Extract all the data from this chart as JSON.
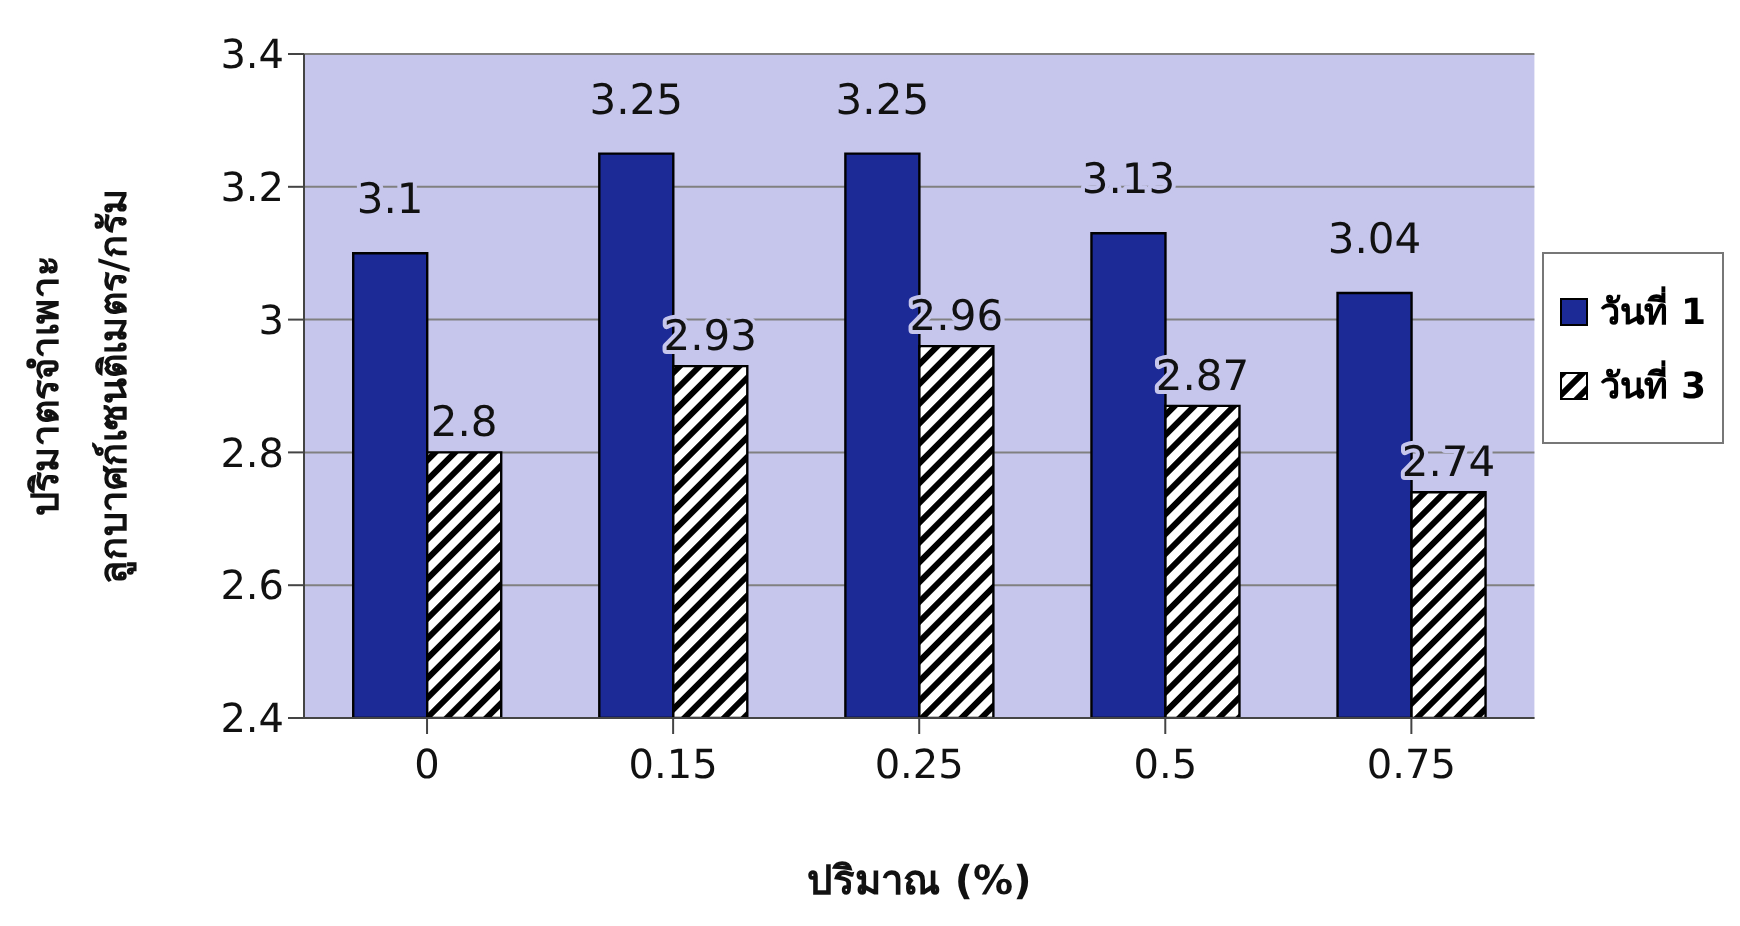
{
  "chart_data": {
    "type": "bar",
    "xlabel": "ปริมาณ (%)",
    "ylabel": "ปริมาตรจำเพาะ ลูกบาศก์เซนติเมตร/กรัม",
    "categories": [
      "0",
      "0.15",
      "0.25",
      "0.5",
      "0.75"
    ],
    "series": [
      {
        "name": "วันที่ 1",
        "color": "#1c2a96",
        "values": [
          3.1,
          3.25,
          3.25,
          3.13,
          3.04
        ]
      },
      {
        "name": "วันที่ 3",
        "color": "#000000",
        "values": [
          2.8,
          2.93,
          2.96,
          2.87,
          2.74
        ]
      }
    ],
    "ylim": [
      2.4,
      3.4
    ],
    "yticks": [
      2.4,
      2.6,
      2.8,
      3,
      3.2,
      3.4
    ],
    "grid": "y",
    "legend": "right",
    "data_labels": true
  }
}
